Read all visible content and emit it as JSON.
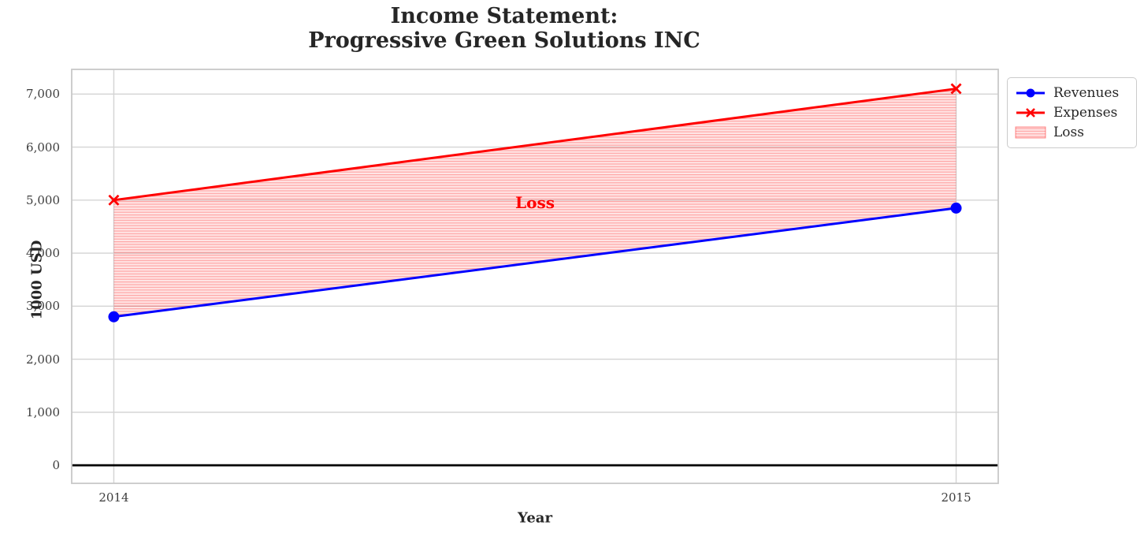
{
  "title": "Income Statement:\nProgressive Green Solutions INC",
  "chart_data": {
    "type": "line",
    "x": [
      2014,
      2015
    ],
    "xtick_labels": [
      "2014",
      "2015"
    ],
    "series": [
      {
        "name": "Revenues",
        "values": [
          2800,
          4850
        ],
        "color": "#0000ff",
        "marker": "circle"
      },
      {
        "name": "Expenses",
        "values": [
          5000,
          7100
        ],
        "color": "#ff0000",
        "marker": "x"
      }
    ],
    "loss_region": {
      "label": "Loss",
      "between": [
        "Revenues",
        "Expenses"
      ],
      "fill_color": "#ff0000",
      "fill_opacity": 0.1,
      "hatch": "horizontal"
    },
    "annotation": {
      "text": "Loss",
      "x": 2014.5,
      "y": 4950,
      "color": "#ff0000"
    },
    "xlabel": "Year",
    "ylabel": "1000 USD",
    "yticks": [
      0,
      1000,
      2000,
      3000,
      4000,
      5000,
      6000,
      7000
    ],
    "ytick_labels": [
      "0",
      "1,000",
      "2,000",
      "3,000",
      "4,000",
      "5,000",
      "6,000",
      "7,000"
    ],
    "xlim": [
      2013.95,
      2015.05
    ],
    "ylim": [
      -340,
      7465
    ],
    "grid": true,
    "zero_line": true,
    "legend": {
      "position": "outside-upper-right",
      "entries": [
        "Revenues",
        "Expenses",
        "Loss"
      ]
    }
  }
}
